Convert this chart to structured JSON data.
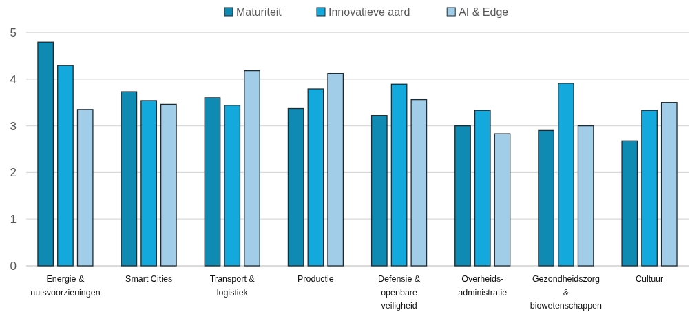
{
  "chart_data": {
    "type": "bar",
    "categories": [
      "Energie &\nnutsvoorzieningen",
      "Smart Cities",
      "Transport &\nlogistiek",
      "Productie",
      "Defensie &\nopenbare\nveiligheid",
      "Overheids-\nadministratie",
      "Gezondheidszorg\n&\nbiowetenschappen",
      "Cultuur"
    ],
    "series": [
      {
        "name": "Maturiteit",
        "color": "#0e8ab3",
        "values": [
          4.79,
          3.73,
          3.6,
          3.37,
          3.22,
          3.0,
          2.9,
          2.68
        ]
      },
      {
        "name": "Innovatieve aard",
        "color": "#13a9dc",
        "values": [
          4.29,
          3.54,
          3.44,
          3.79,
          3.89,
          3.33,
          3.91,
          3.33
        ]
      },
      {
        "name": "AI & Edge",
        "color": "#a1cde8",
        "values": [
          3.35,
          3.46,
          4.18,
          4.12,
          3.56,
          2.83,
          3.0,
          3.5
        ]
      }
    ],
    "ylim": [
      0,
      5
    ],
    "yticks": [
      0,
      1,
      2,
      3,
      4,
      5
    ],
    "grid": "y",
    "legend": "top"
  }
}
